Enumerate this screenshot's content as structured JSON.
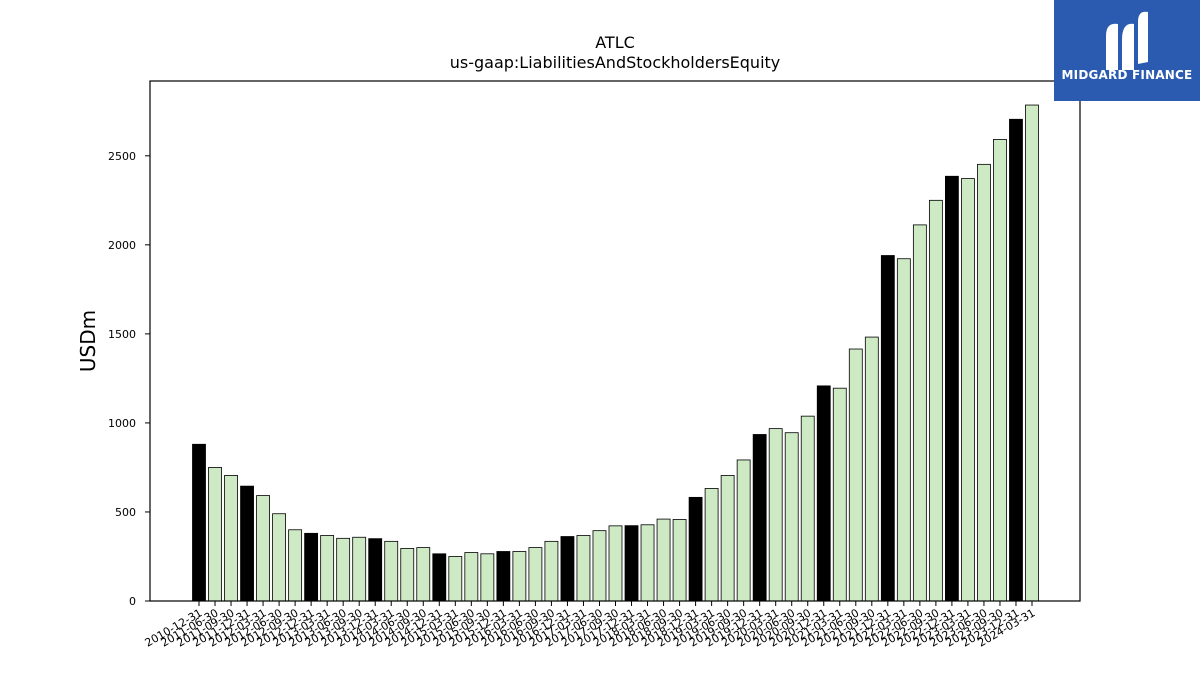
{
  "chart_data": {
    "type": "bar",
    "title": "ATLC",
    "subtitle": "us-gaap:LiabilitiesAndStockholdersEquity",
    "xlabel": "",
    "ylabel": "USDm",
    "ylim": [
      0,
      2920
    ],
    "yticks": [
      0,
      500,
      1000,
      1500,
      2000,
      2500
    ],
    "grid": false,
    "colors": {
      "annual": "#000000",
      "quarterly": "#cdeac4",
      "edge": "#000000"
    },
    "categories": [
      "2010-12-31",
      "2011-06-30",
      "2011-09-30",
      "2011-12-31",
      "2012-03-31",
      "2012-06-30",
      "2012-09-30",
      "2012-12-31",
      "2013-03-31",
      "2013-06-30",
      "2013-09-30",
      "2013-12-31",
      "2014-03-31",
      "2014-06-30",
      "2014-09-30",
      "2014-12-31",
      "2015-03-31",
      "2015-06-30",
      "2015-09-30",
      "2015-12-31",
      "2016-03-31",
      "2016-06-30",
      "2016-09-30",
      "2016-12-31",
      "2017-03-31",
      "2017-06-30",
      "2017-09-30",
      "2017-12-31",
      "2018-03-31",
      "2018-06-30",
      "2018-09-30",
      "2018-12-31",
      "2019-03-31",
      "2019-06-30",
      "2019-09-30",
      "2019-12-31",
      "2020-03-31",
      "2020-06-30",
      "2020-09-30",
      "2020-12-31",
      "2021-03-31",
      "2021-06-30",
      "2021-09-30",
      "2021-12-31",
      "2022-03-31",
      "2022-06-30",
      "2022-09-30",
      "2022-12-31",
      "2023-03-31",
      "2023-06-30",
      "2023-09-30",
      "2023-12-31",
      "2024-03-31"
    ],
    "values": [
      880,
      750,
      705,
      645,
      592,
      490,
      400,
      380,
      368,
      352,
      358,
      350,
      335,
      295,
      300,
      265,
      250,
      272,
      265,
      278,
      278,
      300,
      335,
      362,
      368,
      395,
      422,
      423,
      428,
      460,
      458,
      582,
      632,
      705,
      792,
      935,
      968,
      945,
      1038,
      1208,
      1195,
      1415,
      1482,
      1940,
      1922,
      2112,
      2250,
      2385,
      2372,
      2452,
      2592,
      2705,
      2785
    ],
    "annual_flags": [
      1,
      0,
      0,
      1,
      0,
      0,
      0,
      1,
      0,
      0,
      0,
      1,
      0,
      0,
      0,
      1,
      0,
      0,
      0,
      1,
      0,
      0,
      0,
      1,
      0,
      0,
      0,
      1,
      0,
      0,
      0,
      1,
      0,
      0,
      0,
      1,
      0,
      0,
      0,
      1,
      0,
      0,
      0,
      1,
      0,
      0,
      0,
      1,
      0,
      0,
      0,
      1,
      0
    ]
  },
  "logo": {
    "text": "MIDGARD FINANCE",
    "background": "#2b5bb0",
    "icon": "midgard-logo-icon"
  }
}
